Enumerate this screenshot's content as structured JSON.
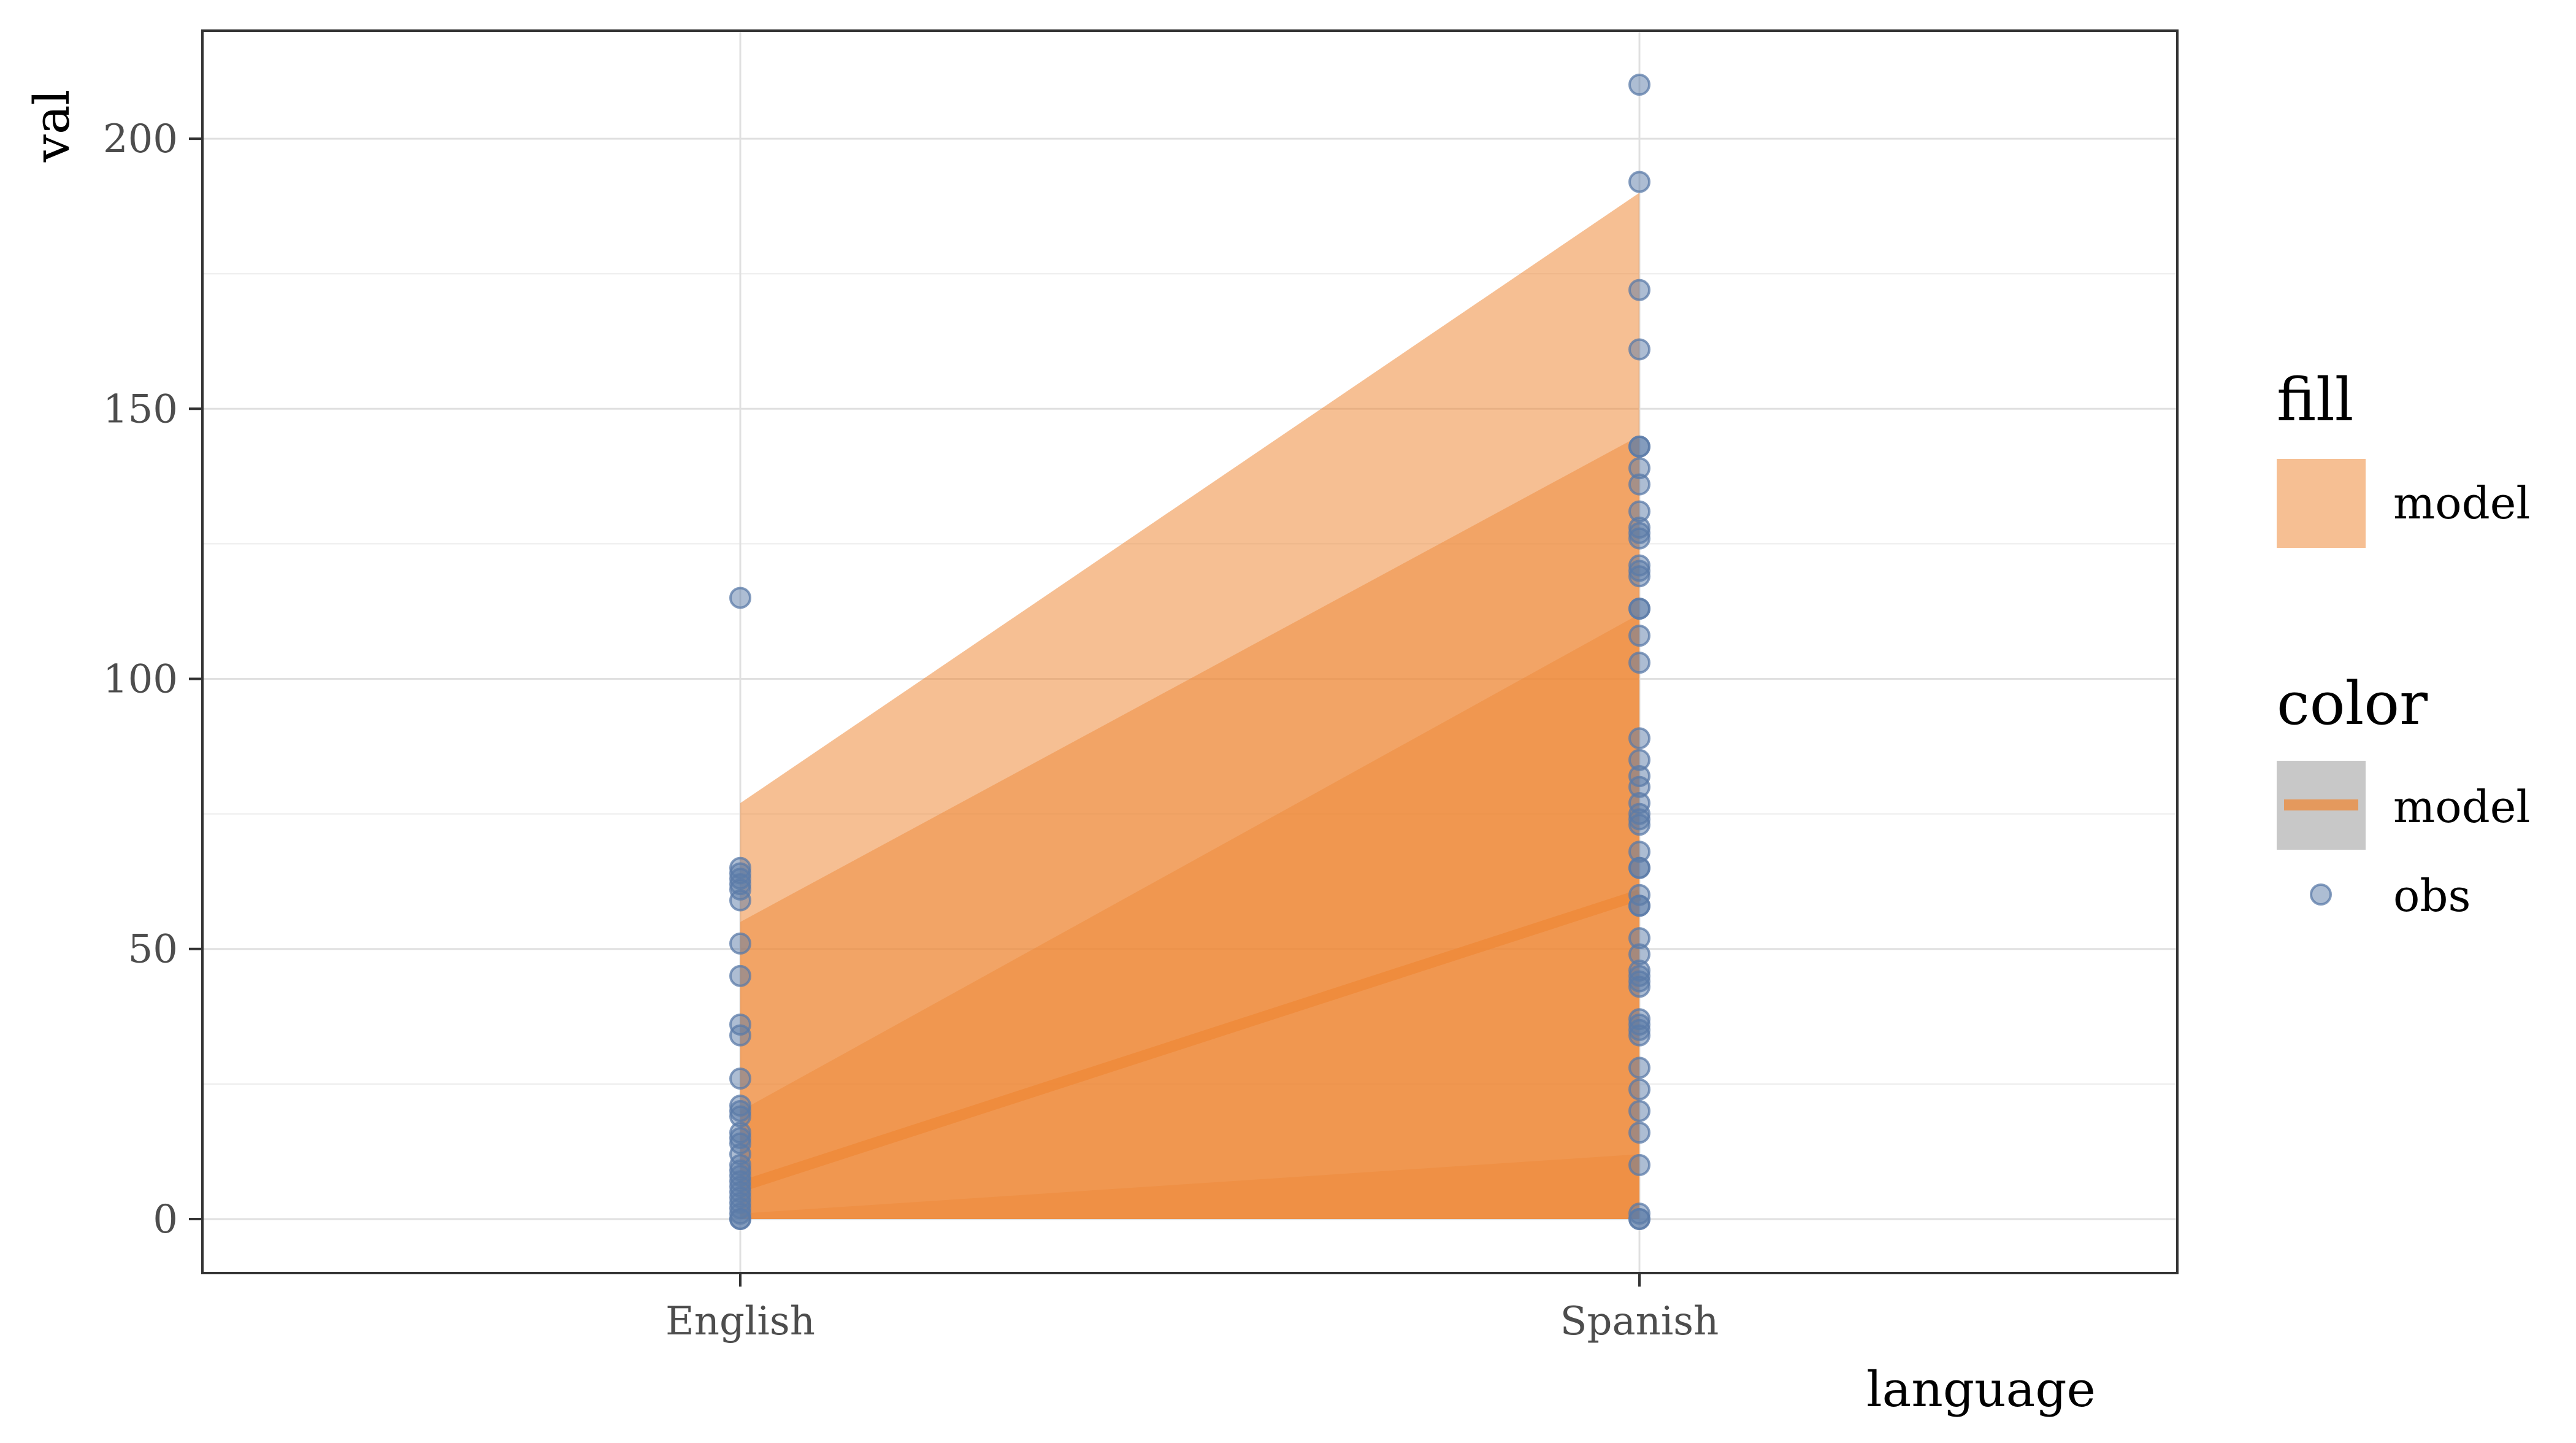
{
  "chart_data": {
    "type": "scatter",
    "xlabel": "language",
    "ylabel": "val",
    "categories": [
      "English",
      "Spanish"
    ],
    "ylim": [
      -10,
      220
    ],
    "y_ticks": [
      0,
      50,
      100,
      150,
      200
    ],
    "grid": true,
    "legend_position": "right",
    "colors": {
      "model_fill": "#ee8a3a",
      "model_line": "#ee8a3a",
      "obs_point": "#5b7ba8"
    },
    "ribbons": [
      {
        "name": "model",
        "lower": [
          0,
          0
        ],
        "upper": [
          77,
          190
        ]
      },
      {
        "name": "model",
        "lower": [
          0,
          0
        ],
        "upper": [
          55,
          145
        ]
      },
      {
        "name": "model",
        "lower": [
          0,
          0
        ],
        "upper": [
          20,
          112
        ]
      },
      {
        "name": "model",
        "lower": [
          0,
          0
        ],
        "upper": [
          1,
          12
        ]
      }
    ],
    "series": [
      {
        "name": "model",
        "type": "line",
        "values": [
          6,
          60
        ]
      },
      {
        "name": "obs",
        "type": "scatter",
        "points": {
          "English": [
            115,
            65,
            64,
            63,
            62,
            61,
            59,
            51,
            45,
            36,
            34,
            26,
            21,
            20,
            19,
            16,
            15,
            14,
            12,
            10,
            9,
            8,
            7,
            6,
            5,
            4,
            3,
            2,
            1,
            0,
            0
          ],
          "Spanish": [
            210,
            192,
            172,
            161,
            143,
            143,
            139,
            136,
            131,
            128,
            127,
            126,
            121,
            120,
            119,
            113,
            113,
            108,
            103,
            89,
            85,
            82,
            80,
            77,
            75,
            74,
            73,
            68,
            65,
            65,
            60,
            58,
            58,
            52,
            49,
            46,
            45,
            44,
            43,
            37,
            36,
            35,
            34,
            28,
            24,
            20,
            16,
            10,
            1,
            0,
            0
          ]
        }
      }
    ],
    "legend": {
      "fill_title": "fill",
      "fill_label": "model",
      "color_title": "color",
      "color_labels": [
        "model",
        "obs"
      ]
    }
  }
}
